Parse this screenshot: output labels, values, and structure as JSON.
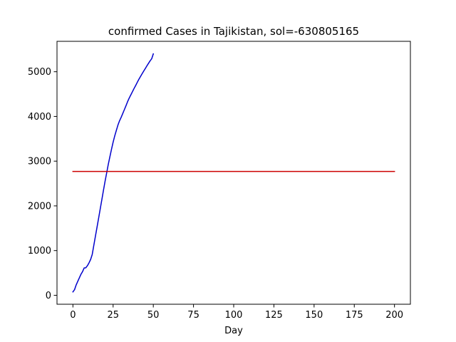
{
  "chart_data": {
    "type": "line",
    "title": "confirmed Cases in Tajikistan, sol=-630805165",
    "xlabel": "Day",
    "ylabel": "",
    "xlim": [
      -9.9,
      209.9
    ],
    "ylim": [
      -200,
      5680
    ],
    "x_ticks": [
      0,
      25,
      50,
      75,
      100,
      125,
      150,
      175,
      200
    ],
    "y_ticks": [
      0,
      1000,
      2000,
      3000,
      4000,
      5000
    ],
    "grid": false,
    "legend": "none",
    "series": [
      {
        "color": "#0000cc",
        "x": [
          0,
          1,
          2,
          3,
          4,
          5,
          6,
          7,
          8,
          9,
          10,
          11,
          12,
          13,
          14,
          15,
          16,
          17,
          18,
          19,
          20,
          21,
          22,
          23,
          24,
          25,
          26,
          27,
          28,
          29,
          30,
          31,
          32,
          33,
          34,
          35,
          36,
          37,
          38,
          39,
          40,
          41,
          42,
          43,
          44,
          45,
          46,
          47,
          48,
          49,
          50
        ],
        "y": [
          76,
          125,
          230,
          310,
          390,
          470,
          530,
          612,
          615,
          661,
          725,
          800,
          911,
          1118,
          1322,
          1524,
          1729,
          1936,
          2140,
          2350,
          2551,
          2738,
          2929,
          3100,
          3266,
          3424,
          3563,
          3686,
          3807,
          3903,
          3980,
          4066,
          4152,
          4239,
          4330,
          4410,
          4481,
          4552,
          4623,
          4690,
          4761,
          4829,
          4892,
          4953,
          5012,
          5071,
          5130,
          5187,
          5243,
          5290,
          5399
        ]
      },
      {
        "color": "#cc0000",
        "x": [
          0,
          200
        ],
        "y": [
          2770,
          2770
        ]
      }
    ]
  }
}
